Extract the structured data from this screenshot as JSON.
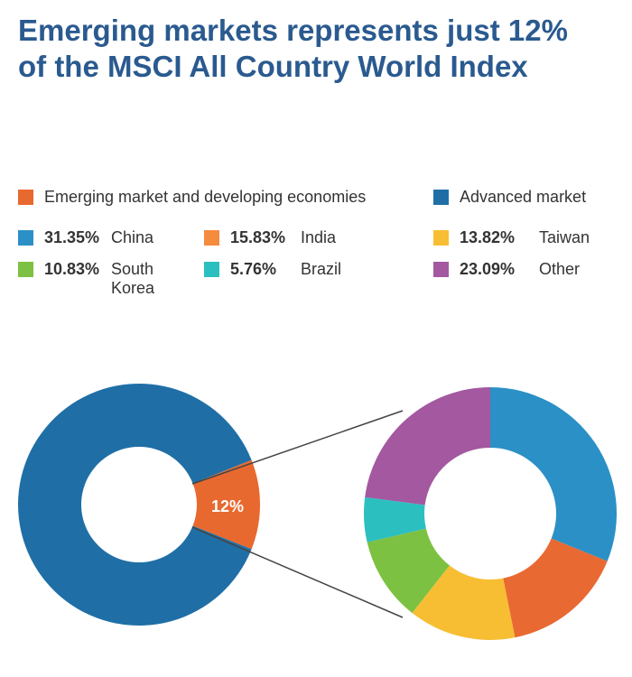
{
  "title_line1": "Emerging markets represents just 12%",
  "title_line2": "of the MSCI All Country World Index",
  "chart_data": [
    {
      "type": "pie",
      "variant": "donut",
      "slices": [
        {
          "label": "Advanced market",
          "value": 88,
          "color": "#1f6fa6"
        },
        {
          "label": "Emerging market and developing economies",
          "value": 12,
          "color": "#e8692f",
          "data_label": "12%"
        }
      ]
    },
    {
      "type": "pie",
      "variant": "donut",
      "slices": [
        {
          "label": "China",
          "value": 31.35,
          "display": "31.35%",
          "color": "#2b90c6"
        },
        {
          "label": "India",
          "value": 15.83,
          "display": "15.83%",
          "color": "#e86a32"
        },
        {
          "label": "Taiwan",
          "value": 13.82,
          "display": "13.82%",
          "color": "#f7be34"
        },
        {
          "label": "South Korea",
          "value": 10.83,
          "display": "10.83%",
          "color": "#7dc142"
        },
        {
          "label": "Brazil",
          "value": 5.76,
          "display": "5.76%",
          "color": "#2cbfc0"
        },
        {
          "label": "Other",
          "value": 23.09,
          "display": "23.09%",
          "color": "#a358a0"
        }
      ]
    }
  ],
  "legend_top": [
    {
      "label": "Emerging market and developing economies",
      "color": "#e8692f"
    },
    {
      "label": "Advanced market",
      "color": "#1f6fa6"
    }
  ],
  "legend_colors": {
    "india_swatch": "#f58b3f"
  }
}
